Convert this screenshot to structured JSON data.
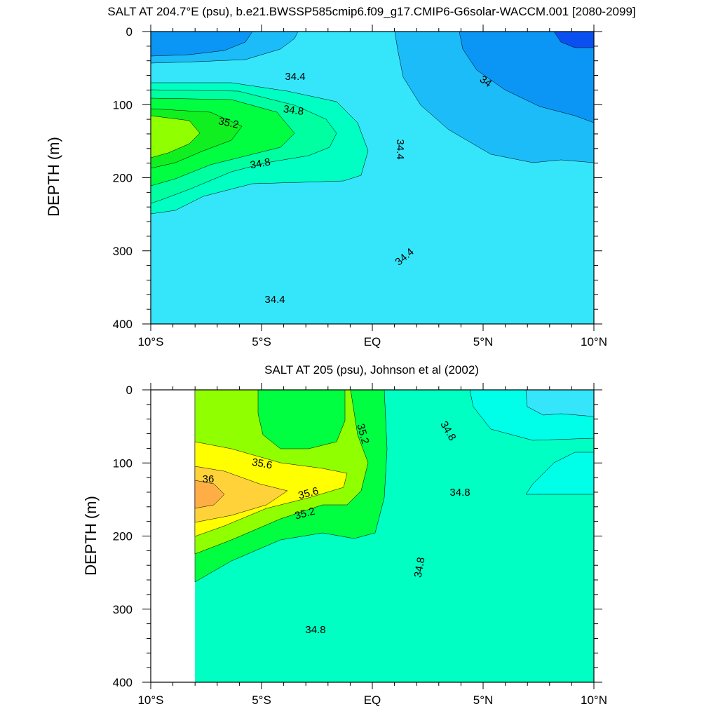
{
  "chart_data": [
    {
      "type": "contour",
      "title": "SALT AT 204.7°E (psu), b.e21.BWSSP585cmip6.f09_g17.CMIP6-G6solar-WACCM.001 [2080-2099]",
      "ylabel": "DEPTH (m)",
      "xlabel": "",
      "x_ticks": [
        "10°S",
        "5°S",
        "EQ",
        "5°N",
        "10°N"
      ],
      "y_ticks": [
        "0",
        "100",
        "200",
        "300",
        "400"
      ],
      "xlim": [
        -10,
        10
      ],
      "ylim": [
        400,
        0
      ],
      "contour_levels": [
        34.0,
        34.2,
        34.4,
        34.6,
        34.8,
        35.0,
        35.2,
        35.4
      ],
      "contour_labels": [
        "34.4",
        "34.8",
        "35.2",
        "34.8",
        "34.4",
        "34",
        "34.4",
        "34.4"
      ],
      "value_range": {
        "min": 33.8,
        "max": 35.4
      },
      "colors": {
        "lt34": "#0a50f0",
        "34.0": "#0b96f5",
        "34.2": "#1bbcf7",
        "34.4": "#35e6fb",
        "34.6": "#00ffc2",
        "34.8": "#00ffa0",
        "35.0": "#00ff40",
        "35.2": "#90ff00"
      }
    },
    {
      "type": "contour",
      "title": "SALT AT 205 (psu), Johnson et al (2002)",
      "ylabel": "DEPTH (m)",
      "xlabel": "",
      "x_ticks": [
        "10°S",
        "5°S",
        "EQ",
        "5°N",
        "10°N"
      ],
      "y_ticks": [
        "0",
        "100",
        "200",
        "300",
        "400"
      ],
      "xlim": [
        -10,
        10
      ],
      "ylim": [
        400,
        0
      ],
      "data_start_lat": -8,
      "contour_levels": [
        34.6,
        34.8,
        35.0,
        35.2,
        35.4,
        35.6,
        35.8,
        36.0
      ],
      "contour_labels": [
        "35.2",
        "34.8",
        "35.6",
        "36",
        "35.6",
        "35.2",
        "34.8",
        "34.8",
        "34.8"
      ],
      "value_range": {
        "min": 34.5,
        "max": 36.2
      },
      "colors": {
        "34.4": "#35e6fb",
        "34.6": "#00ffe8",
        "34.8": "#00ffc2",
        "35.0": "#00ff40",
        "35.2": "#90ff00",
        "35.6": "#ffff00",
        "35.8": "#ffd23a",
        "36.0": "#ffae45"
      }
    }
  ]
}
